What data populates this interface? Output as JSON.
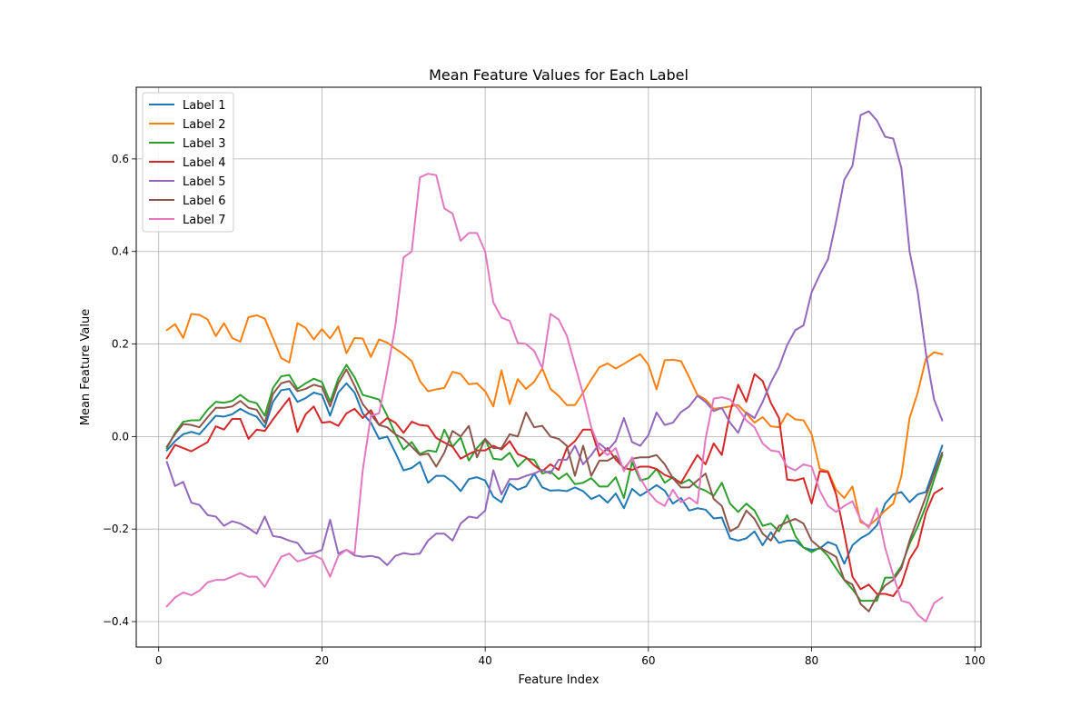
{
  "chart_data": {
    "type": "line",
    "title": "Mean Feature Values for Each Label",
    "xlabel": "Feature Index",
    "ylabel": "Mean Feature Value",
    "xlim": [
      -2.75,
      100.75
    ],
    "ylim": [
      -0.455,
      0.755
    ],
    "xticks": [
      0,
      20,
      40,
      60,
      80,
      100
    ],
    "yticks": [
      -0.4,
      -0.2,
      0.0,
      0.2,
      0.4,
      0.6
    ],
    "xtick_labels": [
      "0",
      "20",
      "40",
      "60",
      "80",
      "100"
    ],
    "ytick_labels": [
      "−0.4",
      "−0.2",
      "0.0",
      "0.2",
      "0.4",
      "0.6"
    ],
    "grid": true,
    "legend_position": "top-left",
    "x": [
      1,
      2,
      3,
      4,
      5,
      6,
      7,
      8,
      9,
      10,
      11,
      12,
      13,
      14,
      15,
      16,
      17,
      18,
      19,
      20,
      21,
      22,
      23,
      24,
      25,
      26,
      27,
      28,
      29,
      30,
      31,
      32,
      33,
      34,
      35,
      36,
      37,
      38,
      39,
      40,
      41,
      42,
      43,
      44,
      45,
      46,
      47,
      48,
      49,
      50,
      51,
      52,
      53,
      54,
      55,
      56,
      57,
      58,
      59,
      60,
      61,
      62,
      63,
      64,
      65,
      66,
      67,
      68,
      69,
      70,
      71,
      72,
      73,
      74,
      75,
      76,
      77,
      78,
      79,
      80,
      81,
      82,
      83,
      84,
      85,
      86,
      87,
      88,
      89,
      90,
      91,
      92,
      93,
      94,
      95,
      96
    ],
    "series": [
      {
        "name": "Label 1",
        "color": "#1f77b4",
        "values": [
          -0.03,
          -0.01,
          0.005,
          0.01,
          0.005,
          0.025,
          0.045,
          0.043,
          0.048,
          0.06,
          0.05,
          0.043,
          0.02,
          0.075,
          0.1,
          0.103,
          0.075,
          0.083,
          0.095,
          0.09,
          0.045,
          0.095,
          0.115,
          0.095,
          0.05,
          0.03,
          -0.005,
          0.0,
          -0.035,
          -0.073,
          -0.068,
          -0.055,
          -0.1,
          -0.085,
          -0.085,
          -0.098,
          -0.118,
          -0.092,
          -0.088,
          -0.095,
          -0.13,
          -0.142,
          -0.102,
          -0.115,
          -0.108,
          -0.08,
          -0.11,
          -0.117,
          -0.116,
          -0.118,
          -0.11,
          -0.118,
          -0.135,
          -0.127,
          -0.143,
          -0.123,
          -0.155,
          -0.113,
          -0.128,
          -0.117,
          -0.105,
          -0.117,
          -0.145,
          -0.133,
          -0.16,
          -0.155,
          -0.158,
          -0.177,
          -0.175,
          -0.22,
          -0.225,
          -0.22,
          -0.205,
          -0.235,
          -0.207,
          -0.23,
          -0.225,
          -0.225,
          -0.24,
          -0.245,
          -0.242,
          -0.228,
          -0.235,
          -0.275,
          -0.235,
          -0.22,
          -0.21,
          -0.192,
          -0.145,
          -0.125,
          -0.12,
          -0.142,
          -0.125,
          -0.12,
          -0.07,
          -0.02
        ]
      },
      {
        "name": "Label 2",
        "color": "#ff7f0e",
        "values": [
          0.23,
          0.243,
          0.213,
          0.265,
          0.263,
          0.253,
          0.217,
          0.245,
          0.213,
          0.205,
          0.258,
          0.262,
          0.255,
          0.213,
          0.17,
          0.16,
          0.245,
          0.235,
          0.21,
          0.232,
          0.212,
          0.238,
          0.18,
          0.213,
          0.212,
          0.172,
          0.21,
          0.203,
          0.19,
          0.178,
          0.163,
          0.12,
          0.098,
          0.102,
          0.105,
          0.14,
          0.135,
          0.113,
          0.115,
          0.098,
          0.065,
          0.143,
          0.07,
          0.124,
          0.103,
          0.118,
          0.147,
          0.103,
          0.088,
          0.068,
          0.068,
          0.095,
          0.123,
          0.15,
          0.158,
          0.147,
          0.157,
          0.168,
          0.178,
          0.155,
          0.102,
          0.165,
          0.166,
          0.163,
          0.128,
          0.09,
          0.08,
          0.06,
          0.062,
          0.065,
          0.068,
          0.05,
          0.03,
          0.042,
          0.022,
          0.02,
          0.05,
          0.037,
          0.035,
          0.005,
          -0.07,
          -0.075,
          -0.115,
          -0.133,
          -0.108,
          -0.185,
          -0.193,
          -0.178,
          -0.16,
          -0.145,
          -0.085,
          0.04,
          0.095,
          0.168,
          0.182,
          0.178
        ]
      },
      {
        "name": "Label 3",
        "color": "#2ca02c",
        "values": [
          -0.025,
          0.008,
          0.032,
          0.035,
          0.035,
          0.058,
          0.075,
          0.073,
          0.077,
          0.09,
          0.077,
          0.072,
          0.045,
          0.105,
          0.13,
          0.133,
          0.103,
          0.115,
          0.125,
          0.118,
          0.075,
          0.125,
          0.155,
          0.128,
          0.09,
          0.085,
          0.08,
          0.045,
          0.005,
          -0.028,
          -0.012,
          -0.038,
          -0.03,
          -0.033,
          0.015,
          -0.022,
          -0.002,
          -0.052,
          -0.025,
          -0.005,
          -0.048,
          -0.05,
          -0.035,
          -0.065,
          -0.048,
          -0.05,
          -0.08,
          -0.075,
          -0.092,
          -0.08,
          -0.103,
          -0.1,
          -0.09,
          -0.108,
          -0.108,
          -0.088,
          -0.133,
          -0.055,
          -0.095,
          -0.09,
          -0.07,
          -0.1,
          -0.088,
          -0.102,
          -0.093,
          -0.11,
          -0.117,
          -0.128,
          -0.1,
          -0.145,
          -0.163,
          -0.145,
          -0.16,
          -0.193,
          -0.188,
          -0.205,
          -0.17,
          -0.215,
          -0.24,
          -0.25,
          -0.24,
          -0.258,
          -0.285,
          -0.31,
          -0.33,
          -0.355,
          -0.355,
          -0.355,
          -0.305,
          -0.305,
          -0.28,
          -0.232,
          -0.195,
          -0.15,
          -0.093,
          -0.04
        ]
      },
      {
        "name": "Label 4",
        "color": "#d62728",
        "values": [
          -0.047,
          -0.018,
          -0.025,
          -0.032,
          -0.022,
          -0.012,
          0.022,
          0.015,
          0.038,
          0.038,
          -0.005,
          0.015,
          0.012,
          0.037,
          0.06,
          0.083,
          0.01,
          0.048,
          0.065,
          0.03,
          0.032,
          0.023,
          0.05,
          0.06,
          0.04,
          0.057,
          0.025,
          0.04,
          0.03,
          0.008,
          0.032,
          0.025,
          0.023,
          -0.003,
          -0.013,
          -0.022,
          -0.048,
          -0.038,
          -0.03,
          -0.03,
          -0.02,
          -0.028,
          -0.01,
          -0.038,
          -0.045,
          -0.062,
          -0.075,
          -0.06,
          -0.072,
          -0.025,
          -0.01,
          0.015,
          0.015,
          -0.042,
          -0.025,
          -0.05,
          -0.068,
          -0.072,
          -0.065,
          -0.065,
          -0.07,
          -0.083,
          -0.09,
          -0.1,
          -0.07,
          -0.04,
          -0.06,
          -0.015,
          -0.04,
          0.052,
          0.112,
          0.075,
          0.135,
          0.12,
          0.073,
          0.04,
          -0.093,
          -0.095,
          -0.09,
          -0.145,
          -0.075,
          -0.077,
          -0.125,
          -0.21,
          -0.303,
          -0.33,
          -0.32,
          -0.34,
          -0.34,
          -0.345,
          -0.32,
          -0.265,
          -0.237,
          -0.165,
          -0.123,
          -0.112
        ]
      },
      {
        "name": "Label 5",
        "color": "#9467bd",
        "values": [
          -0.055,
          -0.107,
          -0.098,
          -0.143,
          -0.148,
          -0.17,
          -0.173,
          -0.193,
          -0.183,
          -0.188,
          -0.198,
          -0.21,
          -0.173,
          -0.215,
          -0.218,
          -0.225,
          -0.23,
          -0.253,
          -0.252,
          -0.245,
          -0.18,
          -0.253,
          -0.245,
          -0.257,
          -0.26,
          -0.258,
          -0.262,
          -0.278,
          -0.258,
          -0.252,
          -0.255,
          -0.253,
          -0.225,
          -0.21,
          -0.21,
          -0.225,
          -0.188,
          -0.173,
          -0.176,
          -0.16,
          -0.073,
          -0.125,
          -0.092,
          -0.092,
          -0.085,
          -0.08,
          -0.072,
          -0.08,
          -0.05,
          -0.05,
          -0.02,
          -0.06,
          -0.04,
          -0.015,
          -0.03,
          -0.01,
          0.04,
          -0.012,
          -0.02,
          0.003,
          0.052,
          0.025,
          0.03,
          0.053,
          0.065,
          0.088,
          0.075,
          0.055,
          0.062,
          0.03,
          0.008,
          0.052,
          0.04,
          0.075,
          0.117,
          0.15,
          0.198,
          0.23,
          0.24,
          0.312,
          0.35,
          0.383,
          0.465,
          0.555,
          0.585,
          0.695,
          0.703,
          0.683,
          0.648,
          0.644,
          0.58,
          0.4,
          0.312,
          0.18,
          0.08,
          0.035
        ]
      },
      {
        "name": "Label 6",
        "color": "#8c564b",
        "values": [
          -0.022,
          0.005,
          0.027,
          0.025,
          0.02,
          0.042,
          0.062,
          0.062,
          0.065,
          0.077,
          0.062,
          0.058,
          0.03,
          0.092,
          0.115,
          0.12,
          0.098,
          0.103,
          0.112,
          0.107,
          0.065,
          0.115,
          0.145,
          0.11,
          0.07,
          0.048,
          0.025,
          0.02,
          0.005,
          -0.005,
          -0.022,
          -0.04,
          -0.037,
          -0.065,
          -0.035,
          0.012,
          0.0,
          0.023,
          -0.045,
          -0.005,
          -0.025,
          -0.025,
          0.005,
          0.0,
          0.052,
          0.02,
          0.023,
          0.0,
          -0.005,
          -0.02,
          -0.085,
          -0.02,
          -0.085,
          -0.052,
          -0.052,
          -0.042,
          -0.07,
          -0.048,
          -0.045,
          -0.045,
          -0.04,
          -0.06,
          -0.09,
          -0.11,
          -0.11,
          -0.095,
          -0.08,
          -0.135,
          -0.15,
          -0.205,
          -0.195,
          -0.16,
          -0.178,
          -0.21,
          -0.225,
          -0.193,
          -0.185,
          -0.178,
          -0.188,
          -0.225,
          -0.24,
          -0.25,
          -0.26,
          -0.31,
          -0.32,
          -0.362,
          -0.378,
          -0.345,
          -0.322,
          -0.31,
          -0.285,
          -0.225,
          -0.178,
          -0.13,
          -0.08,
          -0.035
        ]
      },
      {
        "name": "Label 7",
        "color": "#e377c2",
        "values": [
          -0.367,
          -0.348,
          -0.337,
          -0.343,
          -0.333,
          -0.315,
          -0.31,
          -0.31,
          -0.303,
          -0.295,
          -0.303,
          -0.303,
          -0.325,
          -0.293,
          -0.26,
          -0.253,
          -0.27,
          -0.265,
          -0.257,
          -0.265,
          -0.303,
          -0.258,
          -0.245,
          -0.253,
          -0.073,
          0.045,
          0.05,
          0.14,
          0.24,
          0.387,
          0.4,
          0.56,
          0.568,
          0.565,
          0.493,
          0.482,
          0.423,
          0.44,
          0.44,
          0.4,
          0.29,
          0.257,
          0.25,
          0.202,
          0.2,
          0.185,
          0.148,
          0.265,
          0.253,
          0.218,
          0.155,
          0.092,
          0.02,
          -0.025,
          -0.04,
          -0.025,
          -0.075,
          -0.045,
          -0.09,
          -0.12,
          -0.14,
          -0.15,
          -0.115,
          -0.142,
          -0.132,
          -0.145,
          -0.005,
          0.082,
          0.085,
          0.08,
          0.06,
          0.035,
          0.02,
          -0.015,
          -0.03,
          -0.033,
          -0.065,
          -0.073,
          -0.06,
          -0.065,
          -0.117,
          -0.15,
          -0.163,
          -0.15,
          -0.14,
          -0.18,
          -0.197,
          -0.155,
          -0.24,
          -0.3,
          -0.355,
          -0.36,
          -0.385,
          -0.4,
          -0.36,
          -0.348
        ]
      }
    ]
  }
}
